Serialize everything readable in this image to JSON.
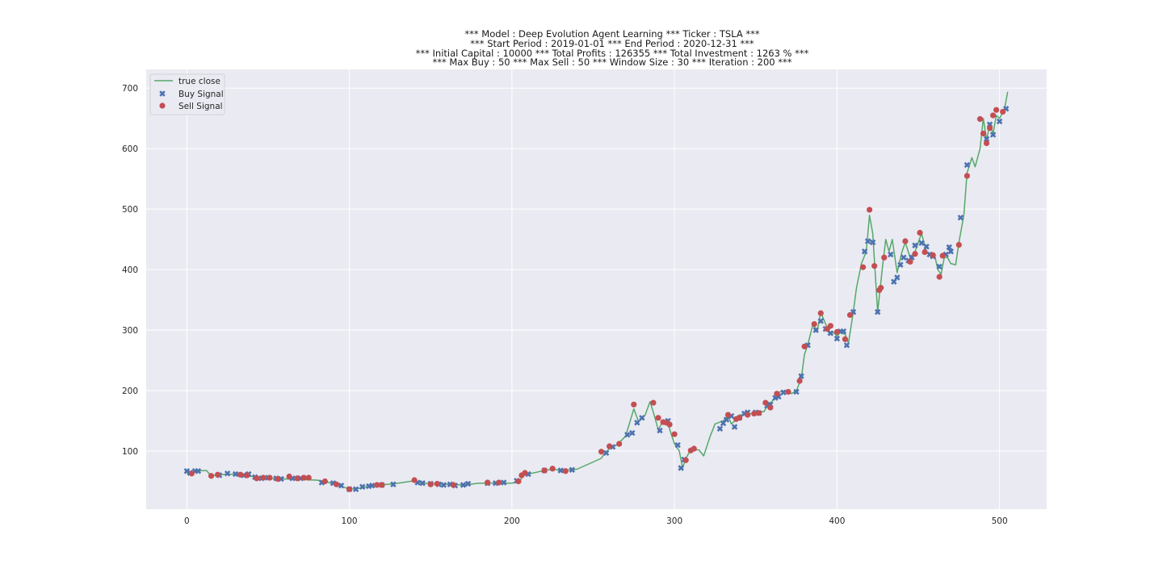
{
  "chart_data": {
    "type": "line",
    "title_lines": [
      "*** Model : Deep Evolution Agent Learning *** Ticker : TSLA ***",
      "*** Start Period : 2019-01-01 *** End Period : 2020-12-31 ***",
      "*** Initial Capital : 10000 *** Total Profits : 126355 *** Total Investment : 1263 % ***",
      "*** Max Buy : 50 *** Max Sell : 50 *** Window Size : 30 *** Iteration : 200 ***"
    ],
    "xlabel": "",
    "ylabel": "",
    "xlim": [
      -25,
      529
    ],
    "ylim": [
      4,
      731
    ],
    "xticks": [
      0,
      100,
      200,
      300,
      400,
      500
    ],
    "yticks": [
      100,
      200,
      300,
      400,
      500,
      600,
      700
    ],
    "grid": true,
    "legend_position": "upper-left",
    "colors": {
      "background": "#eaeaf2",
      "grid": "#ffffff",
      "line": "#55a868",
      "buy": "#4c72b0",
      "sell": "#c44e52"
    },
    "series": [
      {
        "name": "true close",
        "marker": "line",
        "points": [
          [
            0,
            62
          ],
          [
            5,
            67
          ],
          [
            12,
            68
          ],
          [
            15,
            59
          ],
          [
            20,
            61
          ],
          [
            30,
            62
          ],
          [
            40,
            58
          ],
          [
            50,
            55
          ],
          [
            60,
            54
          ],
          [
            70,
            53
          ],
          [
            80,
            52
          ],
          [
            85,
            50
          ],
          [
            95,
            42
          ],
          [
            100,
            37
          ],
          [
            105,
            38
          ],
          [
            110,
            41
          ],
          [
            120,
            44
          ],
          [
            130,
            47
          ],
          [
            140,
            51
          ],
          [
            145,
            47
          ],
          [
            160,
            45
          ],
          [
            170,
            44
          ],
          [
            180,
            47
          ],
          [
            190,
            47
          ],
          [
            200,
            47
          ],
          [
            205,
            50
          ],
          [
            207,
            62
          ],
          [
            210,
            62
          ],
          [
            215,
            65
          ],
          [
            220,
            68
          ],
          [
            225,
            70
          ],
          [
            230,
            68
          ],
          [
            240,
            70
          ],
          [
            245,
            76
          ],
          [
            250,
            82
          ],
          [
            255,
            88
          ],
          [
            257,
            96
          ],
          [
            260,
            104
          ],
          [
            265,
            111
          ],
          [
            270,
            125
          ],
          [
            275,
            170
          ],
          [
            278,
            148
          ],
          [
            282,
            160
          ],
          [
            285,
            182
          ],
          [
            288,
            155
          ],
          [
            290,
            135
          ],
          [
            293,
            150
          ],
          [
            296,
            145
          ],
          [
            298,
            128
          ],
          [
            300,
            112
          ],
          [
            303,
            100
          ],
          [
            305,
            72
          ],
          [
            307,
            88
          ],
          [
            310,
            102
          ],
          [
            315,
            102
          ],
          [
            318,
            92
          ],
          [
            322,
            125
          ],
          [
            325,
            145
          ],
          [
            330,
            150
          ],
          [
            333,
            158
          ],
          [
            335,
            145
          ],
          [
            338,
            152
          ],
          [
            340,
            160
          ],
          [
            345,
            160
          ],
          [
            350,
            165
          ],
          [
            355,
            165
          ],
          [
            358,
            178
          ],
          [
            360,
            182
          ],
          [
            362,
            190
          ],
          [
            365,
            198
          ],
          [
            368,
            200
          ],
          [
            372,
            195
          ],
          [
            375,
            200
          ],
          [
            378,
            220
          ],
          [
            380,
            260
          ],
          [
            382,
            275
          ],
          [
            385,
            308
          ],
          [
            388,
            300
          ],
          [
            390,
            330
          ],
          [
            393,
            310
          ],
          [
            395,
            295
          ],
          [
            398,
            296
          ],
          [
            400,
            290
          ],
          [
            402,
            296
          ],
          [
            405,
            293
          ],
          [
            407,
            278
          ],
          [
            410,
            330
          ],
          [
            412,
            370
          ],
          [
            415,
            410
          ],
          [
            418,
            430
          ],
          [
            420,
            490
          ],
          [
            422,
            460
          ],
          [
            425,
            330
          ],
          [
            428,
            405
          ],
          [
            430,
            450
          ],
          [
            432,
            430
          ],
          [
            434,
            450
          ],
          [
            437,
            395
          ],
          [
            440,
            430
          ],
          [
            442,
            445
          ],
          [
            445,
            420
          ],
          [
            448,
            430
          ],
          [
            450,
            445
          ],
          [
            452,
            460
          ],
          [
            455,
            430
          ],
          [
            458,
            420
          ],
          [
            460,
            425
          ],
          [
            462,
            400
          ],
          [
            464,
            392
          ],
          [
            466,
            420
          ],
          [
            468,
            420
          ],
          [
            470,
            410
          ],
          [
            473,
            408
          ],
          [
            475,
            445
          ],
          [
            478,
            490
          ],
          [
            480,
            560
          ],
          [
            483,
            585
          ],
          [
            485,
            570
          ],
          [
            488,
            600
          ],
          [
            490,
            650
          ],
          [
            492,
            615
          ],
          [
            494,
            640
          ],
          [
            496,
            625
          ],
          [
            498,
            655
          ],
          [
            500,
            650
          ],
          [
            503,
            665
          ],
          [
            505,
            694
          ]
        ]
      },
      {
        "name": "Buy Signal",
        "marker": "x",
        "points": [
          [
            0,
            67
          ],
          [
            2,
            64
          ],
          [
            5,
            67
          ],
          [
            7,
            67
          ],
          [
            20,
            60
          ],
          [
            25,
            63
          ],
          [
            30,
            62
          ],
          [
            35,
            60
          ],
          [
            38,
            62
          ],
          [
            42,
            57
          ],
          [
            46,
            55
          ],
          [
            50,
            56
          ],
          [
            55,
            55
          ],
          [
            58,
            54
          ],
          [
            65,
            55
          ],
          [
            70,
            55
          ],
          [
            83,
            48
          ],
          [
            90,
            47
          ],
          [
            95,
            43
          ],
          [
            100,
            37
          ],
          [
            104,
            37
          ],
          [
            108,
            41
          ],
          [
            112,
            42
          ],
          [
            114,
            43
          ],
          [
            120,
            44
          ],
          [
            127,
            45
          ],
          [
            142,
            48
          ],
          [
            145,
            47
          ],
          [
            150,
            46
          ],
          [
            155,
            45
          ],
          [
            158,
            44
          ],
          [
            162,
            45
          ],
          [
            165,
            43
          ],
          [
            170,
            44
          ],
          [
            173,
            46
          ],
          [
            185,
            47
          ],
          [
            190,
            47
          ],
          [
            195,
            48
          ],
          [
            203,
            51
          ],
          [
            210,
            62
          ],
          [
            220,
            68
          ],
          [
            230,
            68
          ],
          [
            237,
            69
          ],
          [
            258,
            97
          ],
          [
            262,
            107
          ],
          [
            271,
            127
          ],
          [
            274,
            130
          ],
          [
            277,
            147
          ],
          [
            280,
            155
          ],
          [
            291,
            134
          ],
          [
            296,
            150
          ],
          [
            302,
            110
          ],
          [
            304,
            72
          ],
          [
            306,
            86
          ],
          [
            328,
            137
          ],
          [
            330,
            146
          ],
          [
            332,
            152
          ],
          [
            335,
            158
          ],
          [
            337,
            140
          ],
          [
            340,
            155
          ],
          [
            343,
            162
          ],
          [
            345,
            164
          ],
          [
            350,
            164
          ],
          [
            352,
            163
          ],
          [
            357,
            175
          ],
          [
            359,
            177
          ],
          [
            362,
            188
          ],
          [
            364,
            190
          ],
          [
            367,
            197
          ],
          [
            375,
            198
          ],
          [
            378,
            224
          ],
          [
            382,
            275
          ],
          [
            387,
            300
          ],
          [
            390,
            315
          ],
          [
            393,
            302
          ],
          [
            396,
            295
          ],
          [
            400,
            286
          ],
          [
            402,
            298
          ],
          [
            404,
            298
          ],
          [
            406,
            275
          ],
          [
            410,
            330
          ],
          [
            417,
            430
          ],
          [
            419,
            447
          ],
          [
            422,
            445
          ],
          [
            425,
            330
          ],
          [
            433,
            425
          ],
          [
            435,
            380
          ],
          [
            437,
            387
          ],
          [
            439,
            408
          ],
          [
            441,
            420
          ],
          [
            444,
            415
          ],
          [
            446,
            420
          ],
          [
            448,
            440
          ],
          [
            452,
            444
          ],
          [
            455,
            438
          ],
          [
            457,
            425
          ],
          [
            459,
            422
          ],
          [
            463,
            405
          ],
          [
            467,
            425
          ],
          [
            469,
            437
          ],
          [
            470,
            430
          ],
          [
            476,
            486
          ],
          [
            480,
            573
          ],
          [
            492,
            616
          ],
          [
            494,
            640
          ],
          [
            496,
            623
          ],
          [
            500,
            645
          ],
          [
            504,
            666
          ]
        ]
      },
      {
        "name": "Sell Signal",
        "marker": "o",
        "points": [
          [
            3,
            63
          ],
          [
            15,
            59
          ],
          [
            19,
            61
          ],
          [
            33,
            61
          ],
          [
            37,
            60
          ],
          [
            43,
            55
          ],
          [
            47,
            56
          ],
          [
            51,
            56
          ],
          [
            56,
            54
          ],
          [
            63,
            58
          ],
          [
            68,
            55
          ],
          [
            72,
            56
          ],
          [
            75,
            56
          ],
          [
            85,
            50
          ],
          [
            92,
            45
          ],
          [
            100,
            37
          ],
          [
            117,
            44
          ],
          [
            120,
            44
          ],
          [
            140,
            52
          ],
          [
            150,
            45
          ],
          [
            154,
            46
          ],
          [
            164,
            44
          ],
          [
            185,
            48
          ],
          [
            192,
            48
          ],
          [
            204,
            50
          ],
          [
            206,
            60
          ],
          [
            208,
            64
          ],
          [
            220,
            68
          ],
          [
            225,
            71
          ],
          [
            233,
            67
          ],
          [
            255,
            99
          ],
          [
            260,
            108
          ],
          [
            266,
            112
          ],
          [
            275,
            177
          ],
          [
            287,
            180
          ],
          [
            290,
            155
          ],
          [
            293,
            148
          ],
          [
            295,
            147
          ],
          [
            297,
            144
          ],
          [
            300,
            128
          ],
          [
            307,
            85
          ],
          [
            310,
            101
          ],
          [
            312,
            104
          ],
          [
            333,
            160
          ],
          [
            338,
            153
          ],
          [
            340,
            155
          ],
          [
            345,
            160
          ],
          [
            349,
            162
          ],
          [
            352,
            163
          ],
          [
            356,
            180
          ],
          [
            359,
            172
          ],
          [
            363,
            195
          ],
          [
            370,
            198
          ],
          [
            377,
            216
          ],
          [
            380,
            273
          ],
          [
            386,
            310
          ],
          [
            390,
            328
          ],
          [
            394,
            302
          ],
          [
            396,
            307
          ],
          [
            400,
            297
          ],
          [
            405,
            285
          ],
          [
            408,
            325
          ],
          [
            416,
            404
          ],
          [
            420,
            499
          ],
          [
            423,
            406
          ],
          [
            426,
            366
          ],
          [
            427,
            370
          ],
          [
            429,
            420
          ],
          [
            442,
            447
          ],
          [
            445,
            413
          ],
          [
            448,
            426
          ],
          [
            451,
            461
          ],
          [
            454,
            429
          ],
          [
            459,
            424
          ],
          [
            463,
            388
          ],
          [
            465,
            423
          ],
          [
            475,
            441
          ],
          [
            480,
            555
          ],
          [
            488,
            649
          ],
          [
            490,
            625
          ],
          [
            492,
            609
          ],
          [
            494,
            634
          ],
          [
            496,
            655
          ],
          [
            498,
            664
          ],
          [
            502,
            661
          ]
        ]
      }
    ]
  }
}
